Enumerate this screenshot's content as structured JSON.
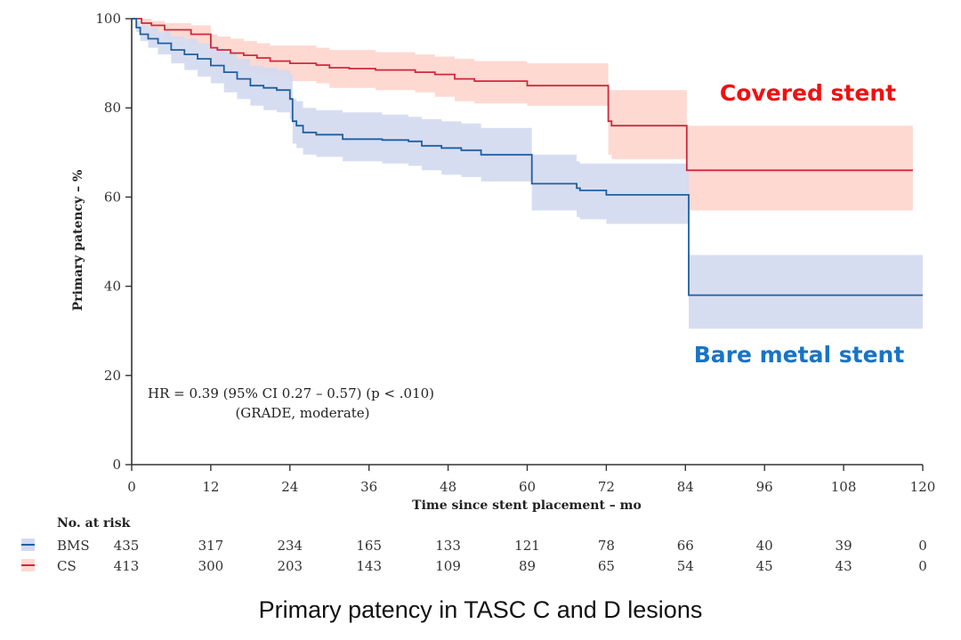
{
  "chart_data": {
    "type": "line",
    "subtype": "kaplan-meier",
    "title": "Primary patency in TASC C and D lesions",
    "xlabel": "Time since stent placement – mo",
    "ylabel": "Primary patency – %",
    "xlim": [
      0,
      120
    ],
    "ylim": [
      0,
      100
    ],
    "xticks": [
      0,
      12,
      24,
      36,
      48,
      60,
      72,
      84,
      96,
      108,
      120
    ],
    "yticks": [
      0,
      20,
      40,
      60,
      80,
      100
    ],
    "grid": false,
    "annotation": {
      "line1": "HR = 0.39 (95% CI 0.27 – 0.57) (p < .010)",
      "line2": "(GRADE, moderate)"
    },
    "series": [
      {
        "name": "CS",
        "label": "Covered stent",
        "color": "#d0283c",
        "ci_color": "#fdd9d2",
        "label_color": "#ee1111",
        "x": [
          0,
          1.5,
          3,
          5,
          9,
          12,
          13,
          15,
          17,
          19,
          21,
          24,
          28,
          30,
          33,
          37,
          43,
          46,
          49,
          52,
          60,
          72.3,
          72.8,
          84.2,
          118.5
        ],
        "y": [
          100,
          99,
          98.5,
          97.5,
          96.5,
          93.5,
          93,
          92.3,
          91.8,
          91.2,
          90.5,
          90,
          89.6,
          89,
          88.8,
          88.5,
          88,
          87.5,
          86.5,
          86,
          85,
          77,
          76,
          66,
          66
        ],
        "ci_upper": [
          100,
          100,
          99.5,
          99,
          98.5,
          96.5,
          96,
          95.5,
          95,
          94.5,
          94,
          94,
          93.5,
          93,
          93,
          92.5,
          92,
          91.5,
          91,
          90.5,
          90,
          84,
          84,
          76,
          76
        ],
        "ci_lower": [
          100,
          98,
          97,
          95.5,
          94,
          90,
          89.5,
          88.5,
          88,
          87.5,
          87,
          86,
          85.5,
          84.5,
          84.5,
          84,
          83.5,
          82.5,
          81.5,
          81,
          80.5,
          69.5,
          68.5,
          57,
          57
        ]
      },
      {
        "name": "BMS",
        "label": "Bare metal stent",
        "color": "#1f5fa0",
        "ci_color": "#d3d9f0",
        "label_color": "#1874c4",
        "x": [
          0,
          0.7,
          1.3,
          2.5,
          4,
          6,
          8,
          10,
          12,
          14,
          16,
          18,
          20,
          22,
          24,
          24.4,
          25,
          26,
          28,
          32,
          38,
          42,
          44,
          47,
          50,
          53,
          60.7,
          67.5,
          68,
          72,
          84.5,
          120
        ],
        "y": [
          100,
          98,
          96.5,
          95.5,
          94.5,
          93,
          92,
          91,
          89.5,
          88,
          86.5,
          85,
          84.5,
          84,
          82,
          77,
          76,
          74.5,
          74,
          73,
          72.8,
          72.5,
          71.5,
          71,
          70.5,
          69.5,
          63,
          62,
          61.5,
          60.5,
          38,
          38
        ],
        "ci_upper": [
          100,
          99.5,
          98.5,
          98,
          97,
          96,
          95.5,
          94.5,
          93.5,
          92.5,
          91,
          89.5,
          89,
          88.5,
          87.5,
          82,
          81.5,
          80,
          79.5,
          79,
          78.5,
          78,
          77.5,
          77,
          76.5,
          75.5,
          69.5,
          68,
          67.5,
          67.5,
          47,
          47
        ],
        "ci_lower": [
          100,
          97,
          95,
          93.5,
          92,
          90,
          88.5,
          87,
          85.5,
          83.5,
          82,
          80.5,
          79.5,
          79,
          77.5,
          72,
          71,
          69.5,
          69,
          68,
          67.5,
          67,
          66,
          65,
          64.5,
          63.5,
          57,
          55.5,
          55,
          54,
          30.5,
          30.5
        ]
      }
    ],
    "risk_table": {
      "title": "No. at risk",
      "times": [
        0,
        12,
        24,
        36,
        48,
        60,
        72,
        84,
        96,
        108,
        120
      ],
      "rows": [
        {
          "name": "BMS",
          "values": [
            "435",
            "317",
            "234",
            "165",
            "133",
            "121",
            "78",
            "66",
            "40",
            "39",
            "0"
          ]
        },
        {
          "name": "CS",
          "values": [
            "413",
            "300",
            "203",
            "143",
            "109",
            "89",
            "65",
            "54",
            "45",
            "43",
            "0"
          ]
        }
      ]
    }
  },
  "caption": "Primary patency in TASC C and D lesions"
}
